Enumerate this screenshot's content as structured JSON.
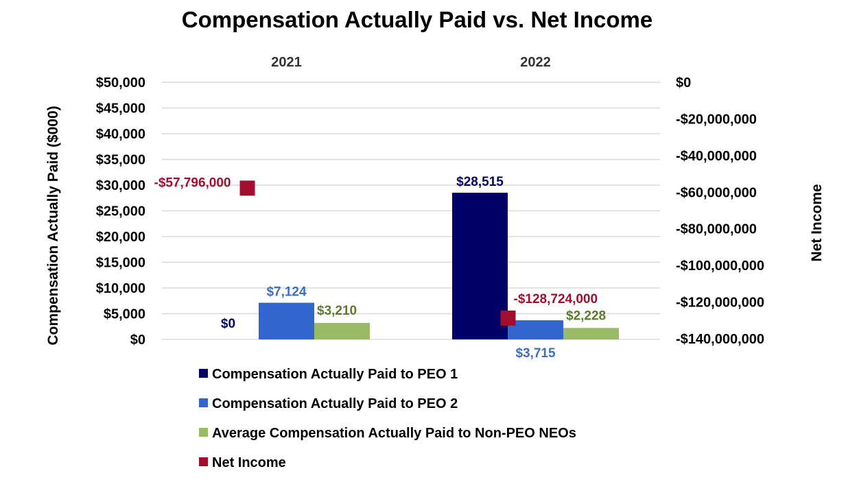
{
  "chart_data": {
    "type": "bar",
    "title": "Compensation Actually Paid vs. Net Income",
    "categories": [
      "2021",
      "2022"
    ],
    "ylabel": "Compensation Actually Paid ($000)",
    "ylim": [
      0,
      50000
    ],
    "y_ticks": [
      "$0",
      "$5,000",
      "$10,000",
      "$15,000",
      "$20,000",
      "$25,000",
      "$30,000",
      "$35,000",
      "$40,000",
      "$45,000",
      "$50,000"
    ],
    "y_tick_values": [
      0,
      5000,
      10000,
      15000,
      20000,
      25000,
      30000,
      35000,
      40000,
      45000,
      50000
    ],
    "y2label": "Net Income",
    "y2lim": [
      -140000000,
      0
    ],
    "y2_ticks": [
      "$0",
      "-$20,000,000",
      "-$40,000,000",
      "-$60,000,000",
      "-$80,000,000",
      "-$100,000,000",
      "-$120,000,000",
      "-$140,000,000"
    ],
    "y2_tick_values": [
      0,
      -20000000,
      -40000000,
      -60000000,
      -80000000,
      -100000000,
      -120000000,
      -140000000
    ],
    "grid": true,
    "legend_position": "bottom",
    "series": [
      {
        "name": "Compensation Actually Paid to PEO 1",
        "type": "bar",
        "axis": "left",
        "color": "#000066",
        "label_color": "#000066",
        "values": [
          0,
          28515
        ],
        "labels": [
          "$0",
          "$28,515"
        ]
      },
      {
        "name": "Compensation Actually Paid to PEO 2",
        "type": "bar",
        "axis": "left",
        "color": "#3366cc",
        "label_color": "#3a6fc8",
        "values": [
          7124,
          3715
        ],
        "labels": [
          "$7,124",
          "$3,715"
        ]
      },
      {
        "name": "Average Compensation Actually Paid to Non-PEO NEOs",
        "type": "bar",
        "axis": "left",
        "color": "#99bb66",
        "label_color": "#5c7a2e",
        "values": [
          3210,
          2228
        ],
        "labels": [
          "$3,210",
          "$2,228"
        ]
      },
      {
        "name": "Net Income",
        "type": "marker",
        "axis": "right",
        "color": "#a50d2e",
        "label_color": "#a50d2e",
        "values": [
          -57796000,
          -128724000
        ],
        "labels": [
          "-$57,796,000",
          "-$128,724,000"
        ]
      }
    ]
  }
}
